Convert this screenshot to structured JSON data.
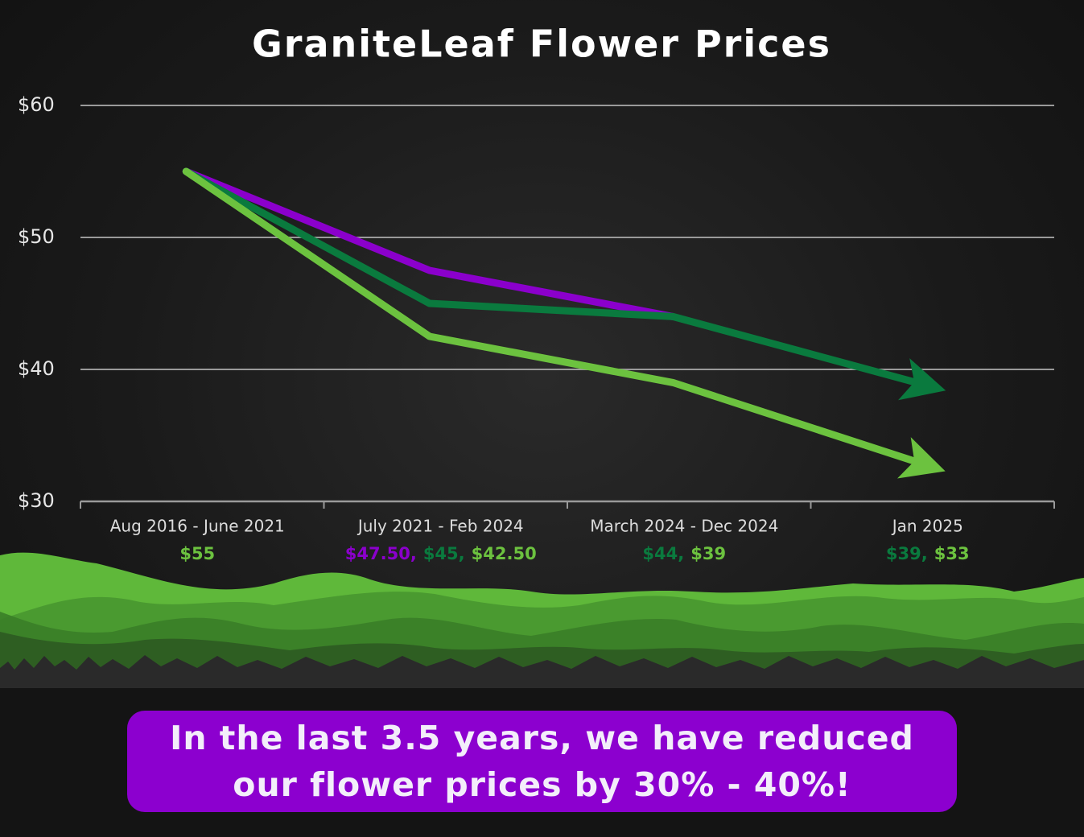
{
  "chart_data": {
    "type": "line",
    "title": "GraniteLeaf Flower Prices",
    "categories": [
      "Aug 2016 - June 2021",
      "July 2021 - Feb 2024",
      "March 2024 - Dec 2024",
      "Jan 2025"
    ],
    "series": [
      {
        "color": "#8b00cc",
        "values": [
          55,
          47.5,
          44,
          null
        ],
        "value_labels": [
          null,
          "$47.50,",
          null,
          null
        ],
        "arrow_end": false
      },
      {
        "color": "#0a7a3e",
        "values": [
          55,
          45,
          44,
          39
        ],
        "value_labels": [
          null,
          "$45,",
          "$44,",
          "$39,"
        ],
        "arrow_end": true
      },
      {
        "color": "#6cc23f",
        "values": [
          55,
          42.5,
          39,
          33
        ],
        "value_labels": [
          "$55",
          "$42.50",
          "$39",
          "$33"
        ],
        "arrow_end": true
      }
    ],
    "ylim": [
      30,
      60
    ],
    "yticks": [
      {
        "value": 30,
        "label": "$30"
      },
      {
        "value": 40,
        "label": "$40"
      },
      {
        "value": 50,
        "label": "$50"
      },
      {
        "value": 60,
        "label": "$60"
      }
    ],
    "grid": true,
    "annotation": "In the last 3.5 years, we have reduced our flower prices by 30% - 40%!"
  }
}
